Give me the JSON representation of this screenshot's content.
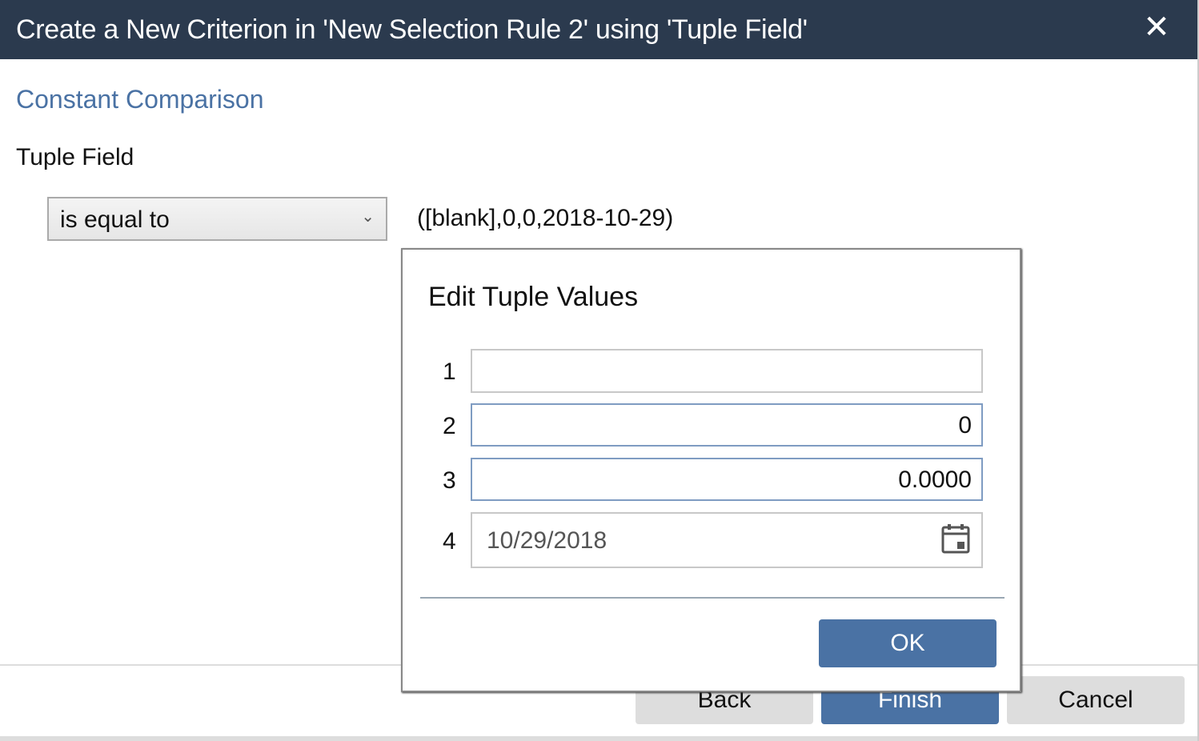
{
  "header": {
    "title": "Create a New Criterion in 'New Selection Rule 2' using 'Tuple Field'",
    "close_icon": "close-icon"
  },
  "section_title": "Constant Comparison",
  "field_label": "Tuple Field",
  "operator": {
    "selected": "is equal to"
  },
  "value_text": "([blank],0,0,2018-10-29)",
  "footer": {
    "back": "Back",
    "finish": "Finish",
    "cancel": "Cancel"
  },
  "modal": {
    "title": "Edit Tuple Values",
    "rows": [
      {
        "label": "1",
        "value": ""
      },
      {
        "label": "2",
        "value": "0"
      },
      {
        "label": "3",
        "value": "0.0000"
      },
      {
        "label": "4",
        "value": "10/29/2018"
      }
    ],
    "ok": "OK"
  },
  "colors": {
    "header": "#2b3a4e",
    "accent": "#4a72a4"
  }
}
